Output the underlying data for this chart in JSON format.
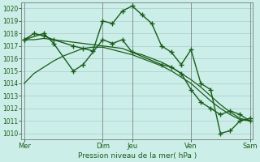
{
  "background_color": "#cceee8",
  "grid_color": "#aacccc",
  "line_color": "#1a5c1a",
  "title": "Pression niveau de la mer( hPa )",
  "ylim": [
    1009.5,
    1020.5
  ],
  "yticks": [
    1010,
    1011,
    1012,
    1013,
    1014,
    1015,
    1016,
    1017,
    1018,
    1019,
    1020
  ],
  "day_labels": [
    "Mer",
    "",
    "Dim",
    "Jeu",
    "",
    "Ven",
    "",
    "Sam"
  ],
  "day_positions": [
    0,
    4,
    8,
    11,
    14,
    17,
    20,
    23
  ],
  "major_vline_positions": [
    0,
    8,
    11,
    17,
    23
  ],
  "series": [
    {
      "x": [
        0,
        1,
        2,
        3,
        4,
        5,
        6,
        7,
        8,
        9,
        10,
        11,
        12,
        13,
        14,
        15,
        16,
        17,
        18,
        19,
        20,
        21,
        22,
        23
      ],
      "y": [
        1014.0,
        1014.8,
        1015.3,
        1015.8,
        1016.2,
        1016.5,
        1016.8,
        1016.9,
        1016.9,
        1016.7,
        1016.5,
        1016.3,
        1016.0,
        1015.7,
        1015.4,
        1015.0,
        1014.5,
        1014.0,
        1013.3,
        1012.6,
        1012.0,
        1011.5,
        1011.1,
        1011.0
      ],
      "marker": null,
      "linewidth": 0.9,
      "linestyle": "-"
    },
    {
      "x": [
        0,
        1,
        2,
        3,
        4,
        5,
        6,
        7,
        8,
        9,
        10,
        11,
        12,
        13,
        14,
        15,
        16,
        17,
        18,
        19,
        20,
        21,
        22,
        23
      ],
      "y": [
        1017.5,
        1017.5,
        1017.6,
        1017.5,
        1017.4,
        1017.3,
        1017.2,
        1017.1,
        1017.0,
        1016.9,
        1016.8,
        1016.5,
        1016.3,
        1016.0,
        1015.7,
        1015.3,
        1014.8,
        1014.3,
        1013.7,
        1013.0,
        1012.3,
        1011.7,
        1011.2,
        1011.0
      ],
      "marker": null,
      "linewidth": 0.9,
      "linestyle": "-"
    },
    {
      "x": [
        0,
        1,
        2,
        3,
        5,
        6,
        7,
        8,
        9,
        10,
        11,
        12,
        13,
        14,
        15,
        16,
        17,
        18,
        19,
        20,
        21,
        22,
        23
      ],
      "y": [
        1017.5,
        1018.0,
        1017.8,
        1017.5,
        1017.0,
        1016.8,
        1016.6,
        1019.0,
        1018.8,
        1019.8,
        1020.2,
        1019.5,
        1018.8,
        1017.0,
        1016.5,
        1015.5,
        1016.7,
        1014.0,
        1013.5,
        1010.0,
        1010.2,
        1011.0,
        1011.2
      ],
      "marker": "+",
      "markersize": 5,
      "linewidth": 1.0,
      "linestyle": "-"
    },
    {
      "x": [
        0,
        2,
        3,
        5,
        6,
        8,
        9,
        10,
        11,
        14,
        15,
        16,
        17,
        18,
        19,
        20,
        21,
        22,
        23
      ],
      "y": [
        1017.5,
        1018.0,
        1017.2,
        1015.0,
        1015.5,
        1017.5,
        1017.2,
        1017.5,
        1016.5,
        1015.5,
        1015.3,
        1014.8,
        1013.5,
        1012.5,
        1012.0,
        1011.5,
        1011.8,
        1011.5,
        1011.0
      ],
      "marker": "+",
      "markersize": 5,
      "linewidth": 1.0,
      "linestyle": "-"
    }
  ]
}
